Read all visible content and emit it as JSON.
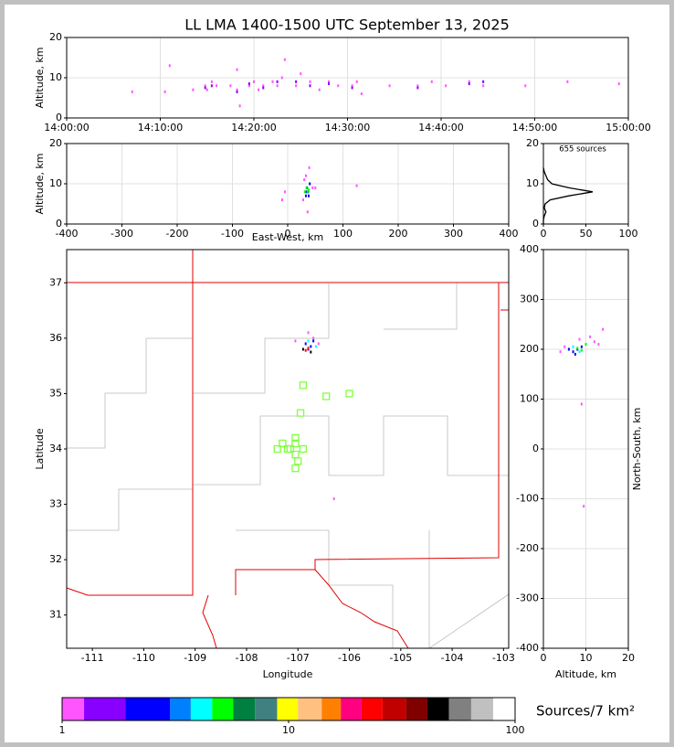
{
  "chart_data": [
    {
      "type": "scatter",
      "title": "LL LMA 1400-1500 UTC September 13, 2025",
      "ylabel": "Altitude, km",
      "xlim": [
        0,
        60
      ],
      "xticks": [
        {
          "value": 0,
          "label": "14:00:00"
        },
        {
          "value": 10,
          "label": "14:10:00"
        },
        {
          "value": 20,
          "label": "14:20:00"
        },
        {
          "value": 30,
          "label": "14:30:00"
        },
        {
          "value": 40,
          "label": "14:40:00"
        },
        {
          "value": 50,
          "label": "14:50:00"
        },
        {
          "value": 60,
          "label": "15:00:00"
        }
      ],
      "ylim": [
        0,
        20
      ],
      "yticks": [
        0,
        10,
        20
      ],
      "grid": true,
      "series": [
        {
          "color": "#ff55ff",
          "x": [
            7,
            10.5,
            11,
            13.5,
            14.8,
            15,
            15.5,
            16,
            17.5,
            18.2,
            18.2,
            18.5,
            19.5,
            20,
            20.5,
            21,
            22,
            22.5,
            23,
            23.3,
            24.5,
            25,
            26,
            27,
            28,
            29,
            30.5,
            31,
            31.5,
            34.5,
            37.5,
            39,
            40.5,
            43,
            44.5,
            49,
            53.5,
            59
          ],
          "values": [
            6.5,
            6.5,
            13,
            7,
            8,
            7,
            9,
            8,
            8,
            7,
            12,
            3,
            8,
            9,
            7,
            8,
            9,
            8,
            10,
            14.5,
            8,
            11,
            9,
            7,
            9,
            8,
            8,
            9,
            6,
            8,
            8,
            9,
            8,
            9,
            8,
            8,
            9,
            8.5
          ]
        },
        {
          "color": "#8800ff",
          "x": [
            14.8,
            15.5,
            18.2,
            19.5,
            21,
            22.5,
            24.5,
            26,
            28,
            30.5,
            37.5,
            43,
            44.5
          ],
          "values": [
            7.5,
            8,
            6.5,
            8.5,
            7.5,
            9,
            9,
            8,
            8.5,
            7.5,
            7.5,
            8.5,
            9
          ]
        }
      ]
    },
    {
      "type": "scatter",
      "xlabel": "East-West, km",
      "ylabel": "Altitude, km",
      "xlim": [
        -400,
        400
      ],
      "xticks": [
        -400,
        -300,
        -200,
        -100,
        0,
        100,
        200,
        300,
        400
      ],
      "ylim": [
        0,
        20
      ],
      "yticks": [
        0,
        10,
        20
      ],
      "grid": true,
      "series": [
        {
          "color": "#ff55ff",
          "x": [
            30,
            45,
            28,
            -5,
            125,
            50,
            39,
            36,
            33,
            -10
          ],
          "values": [
            11,
            9,
            6,
            8,
            9.5,
            9,
            14,
            3,
            12,
            6
          ]
        },
        {
          "color": "#0000ff",
          "x": [
            33,
            35,
            37,
            40,
            34,
            38
          ],
          "values": [
            7,
            9,
            8,
            10,
            8,
            7
          ]
        },
        {
          "color": "#00ff00",
          "x": [
            36,
            34,
            38,
            31
          ],
          "values": [
            8,
            9,
            8.5,
            8
          ]
        }
      ]
    },
    {
      "type": "line",
      "orientation": "horizontal",
      "annotation": "655 sources",
      "xlim": [
        0,
        100
      ],
      "xticks": [
        0,
        50,
        100
      ],
      "ylim": [
        0,
        20
      ],
      "yticks": [
        0,
        10,
        20
      ],
      "grid": true,
      "series": [
        {
          "color": "#000000",
          "x": [
            0,
            1,
            2,
            3,
            4,
            5,
            6,
            7,
            8,
            9,
            10,
            11,
            12,
            13,
            14
          ],
          "values": [
            0,
            0,
            1,
            3,
            1,
            2,
            8,
            30,
            58,
            30,
            10,
            5,
            3,
            1,
            0
          ]
        }
      ]
    },
    {
      "type": "scatter",
      "xlabel": "Longitude",
      "ylabel": "Latitude",
      "xlim": [
        -111.5,
        -102.9
      ],
      "xticks": [
        -111,
        -110,
        -109,
        -108,
        -107,
        -106,
        -105,
        -104,
        -103
      ],
      "ylim": [
        30.4,
        37.6
      ],
      "yticks": [
        31,
        32,
        33,
        34,
        35,
        36,
        37
      ],
      "grid": false,
      "series": [
        {
          "color": "#ff55ff",
          "x": [
            -106.8,
            -107.05,
            -106.3,
            -106.6,
            -106.7
          ],
          "values": [
            36.1,
            35.95,
            33.1,
            35.9,
            36.0
          ]
        },
        {
          "color": "#0000ff",
          "x": [
            -106.85,
            -106.75,
            -106.7,
            -106.8
          ],
          "values": [
            35.9,
            35.85,
            35.95,
            35.8
          ]
        },
        {
          "color": "#00ffff",
          "x": [
            -106.65,
            -106.8
          ],
          "values": [
            35.85,
            35.95
          ]
        },
        {
          "color": "#ff0000",
          "x": [
            -106.85,
            -106.8
          ],
          "values": [
            35.78,
            35.82
          ]
        },
        {
          "color": "#000000",
          "x": [
            -106.9,
            -106.75
          ],
          "values": [
            35.8,
            35.75
          ]
        },
        {
          "color": "#80ff40",
          "marker": "square-open",
          "x": [
            -106.9,
            -106.45,
            -106.0,
            -106.95,
            -107.05,
            -107.05,
            -107.3,
            -107.4,
            -107.2,
            -107.15,
            -106.9,
            -107.05,
            -107.0,
            -107.05
          ],
          "values": [
            35.15,
            34.95,
            35.0,
            34.65,
            34.2,
            34.1,
            34.1,
            34.0,
            34.0,
            34.0,
            34.0,
            33.9,
            33.78,
            33.65
          ]
        }
      ]
    },
    {
      "type": "scatter",
      "xlabel": "Altitude, km",
      "ylabel": "North-South, km",
      "xlim": [
        0,
        20
      ],
      "xticks": [
        0,
        10,
        20
      ],
      "ylim": [
        -400,
        400
      ],
      "yticks": [
        -400,
        -300,
        -200,
        -100,
        0,
        100,
        200,
        300,
        400
      ],
      "grid": true,
      "series": [
        {
          "color": "#ff55ff",
          "x": [
            4,
            5,
            12,
            13,
            14,
            9,
            9.5,
            8.5,
            11
          ],
          "values": [
            195,
            205,
            215,
            210,
            240,
            90,
            -115,
            220,
            225
          ]
        },
        {
          "color": "#0000ff",
          "x": [
            6,
            7,
            8,
            9,
            7.5
          ],
          "values": [
            200,
            195,
            200,
            205,
            190
          ]
        },
        {
          "color": "#00ff00",
          "x": [
            8,
            9,
            10
          ],
          "values": [
            202,
            198,
            210
          ]
        },
        {
          "color": "#00ffff",
          "x": [
            7,
            8.5
          ],
          "values": [
            205,
            195
          ]
        }
      ]
    },
    {
      "type": "colorbar",
      "label": "Sources/7 km²",
      "log": true,
      "xlim": [
        1,
        100
      ],
      "xticks": [
        1,
        10,
        100
      ],
      "bounds": [
        1,
        1.25,
        1.9,
        3,
        3.7,
        4.6,
        5.7,
        7.1,
        8.9,
        11,
        14,
        17,
        21,
        26,
        33,
        41,
        51,
        64,
        80,
        100
      ],
      "colors": [
        "#ff55ff",
        "#8800ff",
        "#0000ff",
        "#0080ff",
        "#00ffff",
        "#00ff00",
        "#008040",
        "#408080",
        "#ffff00",
        "#ffc080",
        "#ff8000",
        "#ff0080",
        "#ff0000",
        "#c00000",
        "#800000",
        "#000000",
        "#808080",
        "#c0c0c0",
        "#ffffff"
      ]
    }
  ]
}
